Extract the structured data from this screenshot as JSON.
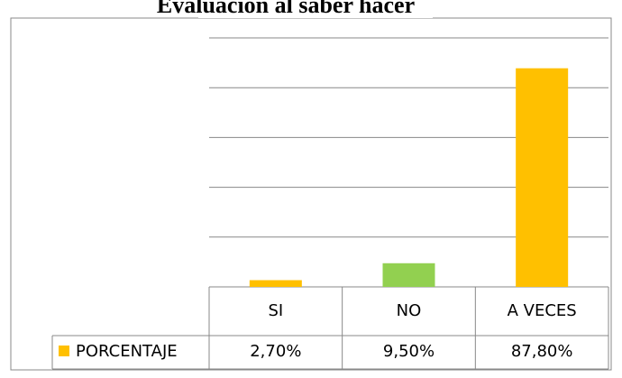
{
  "chart_data": {
    "type": "bar",
    "title": "Evaluación al saber hacer",
    "categories": [
      "SI",
      "NO",
      "A VECES"
    ],
    "series": [
      {
        "name": "PORCENTAJE",
        "color": "#FFC000",
        "colors": [
          "#FFC000",
          "#92D050",
          "#FFC000"
        ],
        "values": [
          2.7,
          9.5,
          87.8
        ],
        "value_labels": [
          "2,70%",
          "9,50%",
          "87,80%"
        ]
      }
    ],
    "ylim": [
      0,
      100
    ],
    "yticks": [
      0,
      20,
      40,
      60,
      80,
      100
    ],
    "grid": true
  }
}
